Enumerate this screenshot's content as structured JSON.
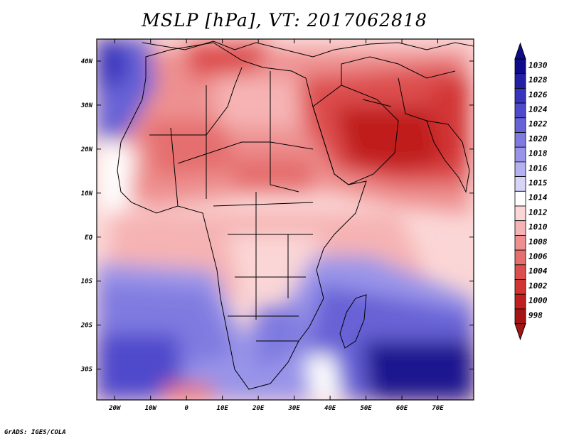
{
  "title": "MSLP [hPa], VT: 2017062818",
  "credit": "GrADS: IGES/COLA",
  "map": {
    "region": "Africa and Middle East",
    "lon_range": [
      -25,
      80
    ],
    "lat_range": [
      -37,
      45
    ],
    "lat_labels": [
      "40N",
      "30N",
      "20N",
      "10N",
      "EQ",
      "10S",
      "20S",
      "30S"
    ],
    "lat_values": [
      40,
      30,
      20,
      10,
      0,
      -10,
      -20,
      -30
    ],
    "lon_labels": [
      "20W",
      "10W",
      "0",
      "10E",
      "20E",
      "30E",
      "40E",
      "50E",
      "60E",
      "70E"
    ],
    "lon_values": [
      -20,
      -10,
      0,
      10,
      20,
      30,
      40,
      50,
      60,
      70
    ]
  },
  "colorbar": {
    "labels": [
      "1030",
      "1028",
      "1026",
      "1024",
      "1022",
      "1020",
      "1018",
      "1016",
      "1015",
      "1014",
      "1012",
      "1010",
      "1008",
      "1006",
      "1004",
      "1002",
      "1000",
      "998"
    ],
    "colors": [
      "#0e0c8c",
      "#231fa6",
      "#3934bd",
      "#4f4acc",
      "#6762d6",
      "#7f7ae0",
      "#9994e9",
      "#b5b1f0",
      "#d6d4f7",
      "#ffffff",
      "#fbd6d6",
      "#f6b3b3",
      "#ee9090",
      "#e56e6e",
      "#dd4e4e",
      "#d23434",
      "#c01f1f",
      "#a51515"
    ],
    "colorbar_colors_note": "ordered top (high pressure, blue) to bottom (low pressure, red)"
  }
}
